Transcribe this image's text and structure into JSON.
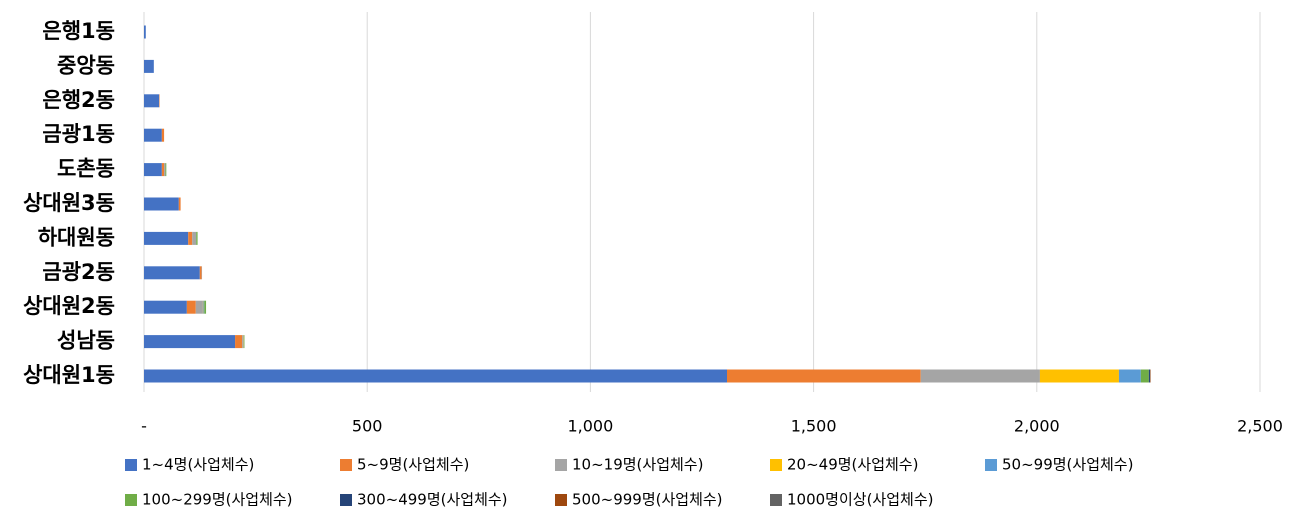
{
  "chart_data": {
    "type": "stacked-bar-horizontal",
    "categories": [
      "은행1동",
      "중앙동",
      "은행2동",
      "금광1동",
      "도촌동",
      "상대원3동",
      "하대원동",
      "금광2동",
      "상대원2동",
      "성남동",
      "상대원1동"
    ],
    "series": [
      {
        "name": "1~4명(사업체수)",
        "color": "#4472c4",
        "values": [
          4,
          22,
          34,
          40,
          40,
          78,
          99,
          125,
          96,
          204,
          1306
        ]
      },
      {
        "name": "5~9명(사업체수)",
        "color": "#ed7d31",
        "values": [
          0,
          0,
          1,
          5,
          5,
          4,
          9,
          4,
          20,
          16,
          434
        ]
      },
      {
        "name": "10~19명(사업체수)",
        "color": "#a5a5a5",
        "values": [
          0,
          0,
          0,
          0,
          3,
          0,
          9,
          1,
          16,
          2,
          267
        ]
      },
      {
        "name": "20~49명(사업체수)",
        "color": "#ffc000",
        "values": [
          0,
          0,
          0,
          0,
          0,
          0,
          0,
          0,
          1,
          1,
          177
        ]
      },
      {
        "name": "50~99명(사업체수)",
        "color": "#5b9bd5",
        "values": [
          0,
          0,
          0,
          0,
          0,
          0,
          0,
          0,
          2,
          1,
          49
        ]
      },
      {
        "name": "100~299명(사업체수)",
        "color": "#70ad47",
        "values": [
          0,
          0,
          0,
          0,
          2,
          0,
          3,
          0,
          4,
          1,
          18
        ]
      },
      {
        "name": "300~499명(사업체수)",
        "color": "#264478",
        "values": [
          0,
          0,
          0,
          0,
          0,
          0,
          0,
          0,
          0,
          0,
          3
        ]
      },
      {
        "name": "500~999명(사업체수)",
        "color": "#9e480e",
        "values": [
          0,
          0,
          0,
          0,
          0,
          0,
          0,
          0,
          0,
          0,
          1
        ]
      },
      {
        "name": "1000명이상(사업체수)",
        "color": "#636363",
        "values": [
          0,
          0,
          0,
          0,
          0,
          0,
          0,
          0,
          0,
          0,
          0
        ]
      }
    ],
    "xlim": [
      0,
      2500
    ],
    "xticks": [
      {
        "value": 0,
        "label": "-"
      },
      500,
      {
        "value": 1000,
        "label": "1,000"
      },
      {
        "value": 1500,
        "label": "1,500"
      },
      {
        "value": 2000,
        "label": "2,000"
      },
      {
        "value": 2500,
        "label": "2,500"
      }
    ],
    "grid": true
  }
}
